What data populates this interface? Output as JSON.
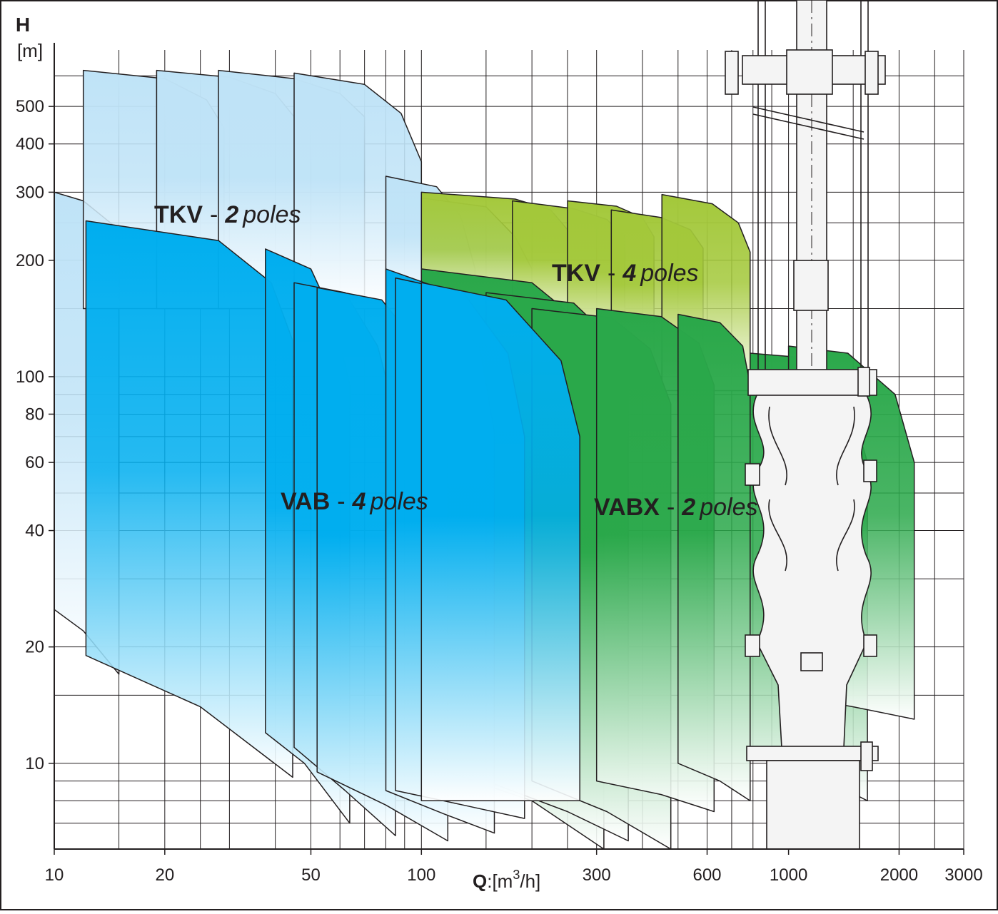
{
  "chart_data": {
    "type": "range-map",
    "y_symbol": "H",
    "y_unit": "[m]",
    "x_symbol": "Q",
    "x_unit_prefix": ":[m",
    "x_unit_power": "3",
    "x_unit_suffix": "/h]",
    "log_x": true,
    "log_y": true,
    "grid": true,
    "xlim": [
      10,
      3000
    ],
    "ylim": [
      6,
      700
    ],
    "xticks": [
      10,
      20,
      50,
      100,
      300,
      600,
      1000,
      2000,
      3000
    ],
    "yticks": [
      10,
      20,
      40,
      60,
      80,
      100,
      200,
      300,
      400,
      500
    ],
    "xgrid": [
      15,
      25,
      30,
      40,
      60,
      70,
      80,
      90,
      150,
      200,
      250,
      400,
      500,
      700,
      800,
      900,
      1500,
      2500
    ],
    "ygrid": [
      7,
      8,
      9,
      15,
      30,
      50,
      70,
      90,
      150,
      250,
      600
    ],
    "series": [
      {
        "name": "TKV",
        "separator": "-",
        "poles": "2",
        "poles_word": "poles",
        "color": "#bfe3f7",
        "shapes": [
          {
            "x": [
              10,
              12,
              15,
              15,
              12,
              10
            ],
            "y": [
              300,
              285,
              240,
              17,
              22,
              25
            ]
          },
          {
            "x": [
              12,
              20,
              26,
              29,
              29,
              12
            ],
            "y": [
              620,
              590,
              520,
              440,
              150,
              150
            ]
          },
          {
            "x": [
              19,
              30,
              40,
              45,
              45,
              19
            ],
            "y": [
              620,
              595,
              540,
              470,
              150,
              150
            ]
          },
          {
            "x": [
              28,
              45,
              60,
              70,
              70,
              28
            ],
            "y": [
              620,
              590,
              540,
              470,
              150,
              150
            ]
          },
          {
            "x": [
              45,
              70,
              88,
              100,
              100,
              45
            ],
            "y": [
              610,
              570,
              480,
              360,
              150,
              150
            ]
          },
          {
            "x": [
              80,
              110,
              128,
              140,
              140,
              80
            ],
            "y": [
              330,
              310,
              260,
              190,
              150,
              150
            ]
          },
          {
            "x": [
              100,
              150,
              180,
              200,
              200,
              100
            ],
            "y": [
              290,
              275,
              230,
              190,
              150,
              150
            ]
          }
        ]
      },
      {
        "name": "TKV",
        "separator": "-",
        "poles": "4",
        "poles_word": "poles",
        "color": "#a3c83a",
        "shapes": [
          {
            "x": [
              100,
              180,
              225,
              250,
              250,
              100
            ],
            "y": [
              300,
              288,
              270,
              240,
              140,
              140
            ]
          },
          {
            "x": [
              177,
              260,
              320,
              358,
              358,
              177
            ],
            "y": [
              285,
              272,
              255,
              230,
              130,
              130
            ]
          },
          {
            "x": [
              250,
              340,
              400,
              430,
              430,
              250
            ],
            "y": [
              285,
              276,
              258,
              230,
              110,
              110
            ]
          },
          {
            "x": [
              329,
              450,
              540,
              585,
              585,
              329
            ],
            "y": [
              270,
              258,
              240,
              215,
              100,
              100
            ]
          },
          {
            "x": [
              452,
              620,
              730,
              786,
              786,
              452
            ],
            "y": [
              296,
              280,
              250,
              210,
              92,
              92
            ]
          }
        ]
      },
      {
        "name": "VAB",
        "separator": "-",
        "poles": "4",
        "poles_word": "poles",
        "color": "#2aa84a",
        "shapes": [
          {
            "x": [
              100,
              200,
              280,
              314,
              314,
              200,
              100
            ],
            "y": [
              190,
              175,
              135,
              100,
              6,
              8,
              10
            ]
          },
          {
            "x": [
              150,
              260,
              330,
              366,
              366,
              250,
              150
            ],
            "y": [
              165,
              155,
              125,
              95,
              6.3,
              7.5,
              9
            ]
          },
          {
            "x": [
              200,
              330,
              420,
              478,
              478,
              320,
              200
            ],
            "y": [
              150,
              142,
              118,
              85,
              6,
              7.5,
              9
            ]
          },
          {
            "x": [
              300,
              450,
              570,
              627,
              627,
              450,
              300
            ],
            "y": [
              150,
              143,
              122,
              95,
              7.5,
              8.3,
              9
            ]
          },
          {
            "x": [
              500,
              650,
              750,
              786,
              786,
              650,
              500
            ],
            "y": [
              145,
              138,
              120,
              95,
              8,
              9,
              10
            ]
          },
          {
            "x": [
              786,
              1100,
              1450,
              1640,
              1640,
              1150,
              786
            ],
            "y": [
              115,
              112,
              90,
              60,
              8,
              9.5,
              11
            ]
          },
          {
            "x": [
              1000,
              1450,
              1950,
              2200,
              2200,
              1500,
              1000
            ],
            "y": [
              120,
              115,
              90,
              60,
              13,
              14,
              15
            ]
          }
        ]
      },
      {
        "name": "VABX",
        "separator": "-",
        "poles": "2",
        "poles_word": "poles",
        "color": "#00aeef",
        "shapes": [
          {
            "x": [
              12.2,
              28,
              39,
              44.6,
              44.6,
              25,
              12.2
            ],
            "y": [
              253,
              225,
              175,
              124,
              9.2,
              14,
              19
            ]
          },
          {
            "x": [
              37.6,
              50,
              58,
              63.8,
              63.8,
              48,
              37.6
            ],
            "y": [
              214,
              190,
              140,
              95,
              7,
              10,
              12
            ]
          },
          {
            "x": [
              45,
              62,
              76,
              85,
              85,
              62,
              45
            ],
            "y": [
              175,
              165,
              120,
              80,
              6.5,
              8.5,
              11
            ]
          },
          {
            "x": [
              52,
              78,
              102,
              118,
              118,
              80,
              52
            ],
            "y": [
              170,
              158,
              115,
              70,
              6.3,
              7.8,
              9.5
            ]
          },
          {
            "x": [
              80,
              115,
              145,
              158,
              158,
              115,
              80
            ],
            "y": [
              190,
              168,
              115,
              72,
              6.6,
              7.4,
              8.5
            ]
          },
          {
            "x": [
              85,
              130,
              172,
              191,
              191,
              130,
              85
            ],
            "y": [
              180,
              165,
              115,
              70,
              7.2,
              7.8,
              8.5
            ]
          },
          {
            "x": [
              100,
              170,
              240,
              270,
              270,
              170,
              100
            ],
            "y": [
              175,
              158,
              110,
              70,
              8,
              8,
              8
            ]
          }
        ]
      }
    ]
  }
}
